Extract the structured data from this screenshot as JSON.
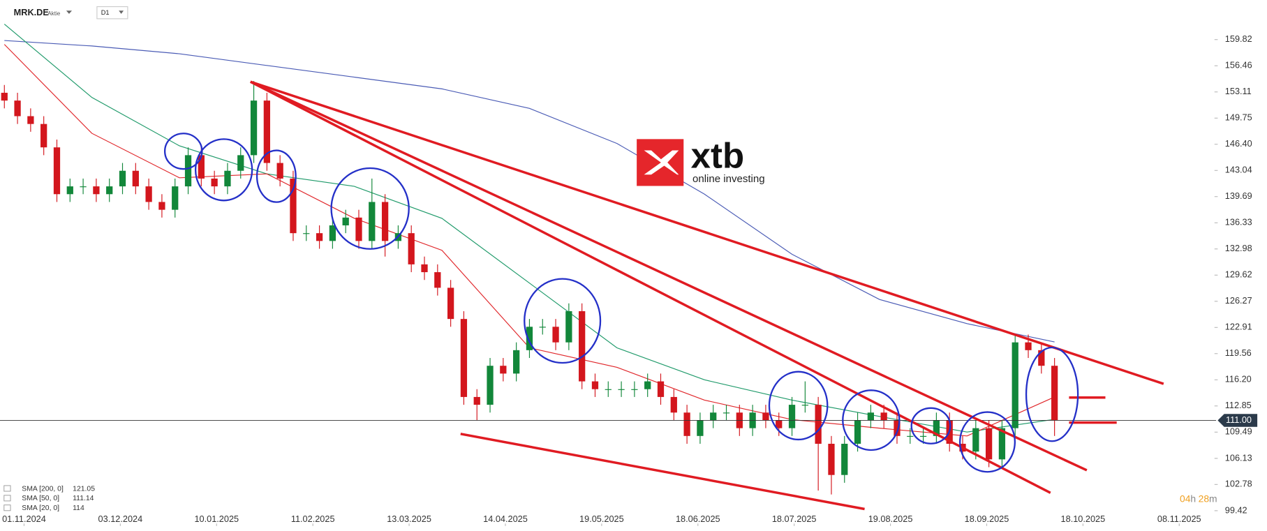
{
  "chart_data": {
    "type": "candlestick",
    "symbol": "MRK.DE",
    "instrument_type": "Aktie",
    "timeframe": "D1",
    "up_color": "#12873a",
    "down_color": "#d3161d",
    "x": [
      0,
      3,
      6,
      9,
      12,
      15,
      18,
      21,
      24,
      27,
      30,
      33,
      36,
      39,
      42,
      45,
      48,
      51,
      54,
      57,
      60,
      63,
      66,
      69,
      72,
      75,
      78,
      81,
      84,
      87,
      90,
      93,
      96,
      99,
      102,
      105,
      108,
      111,
      114,
      117,
      120,
      123,
      126,
      129,
      132,
      135,
      138,
      141,
      144,
      147,
      150,
      153,
      156,
      159,
      162,
      165,
      168,
      171,
      174,
      177,
      180,
      183,
      186,
      189,
      192,
      195,
      198,
      201,
      204,
      207,
      210,
      213,
      216,
      219,
      222,
      225,
      228,
      231,
      234,
      237,
      240
    ],
    "open": [
      153,
      152,
      150,
      149,
      146,
      140,
      141,
      141,
      140,
      141,
      143,
      141,
      139,
      138,
      141,
      145,
      142,
      141,
      143,
      145,
      152,
      144,
      142,
      135,
      135,
      134,
      136,
      137,
      134,
      139,
      134,
      135,
      131,
      130,
      128,
      124,
      114,
      113,
      118,
      117,
      120,
      123,
      123,
      121,
      125,
      116,
      115,
      115,
      115,
      115,
      116,
      114,
      112,
      109,
      111,
      112,
      112,
      110,
      112,
      111,
      110,
      113,
      113,
      108,
      104,
      108,
      111,
      112,
      111,
      109,
      109,
      109,
      111,
      108,
      107,
      110,
      106,
      110,
      121,
      120,
      118
    ],
    "high": [
      154,
      153,
      151,
      150,
      147,
      142,
      142,
      142,
      142,
      144,
      144,
      142,
      140,
      142,
      146,
      146,
      143,
      144,
      146,
      154.5,
      153,
      145,
      143,
      136,
      136,
      137,
      138,
      138,
      142,
      140,
      136,
      136,
      132,
      131,
      129,
      125,
      115,
      119,
      119,
      121,
      124,
      124,
      124,
      126,
      126,
      117,
      116,
      116,
      116,
      117,
      117,
      115,
      113,
      112,
      113,
      113,
      113,
      113,
      113,
      112,
      114,
      116,
      114,
      109,
      109,
      112,
      113,
      113,
      112,
      110,
      110,
      112,
      112,
      109,
      111,
      111,
      111,
      122,
      122,
      121,
      119
    ],
    "low": [
      151,
      149,
      148,
      145,
      139,
      139,
      140,
      139,
      139,
      140,
      140,
      138,
      137,
      137,
      140,
      141,
      140,
      140,
      142,
      144,
      143,
      141,
      134,
      134,
      133,
      133,
      135,
      133,
      133,
      132,
      133,
      130,
      129,
      127,
      123,
      113,
      111,
      112,
      116,
      116,
      119,
      122,
      120,
      120,
      115,
      114,
      114,
      114,
      114,
      114,
      113,
      111,
      108,
      108,
      110,
      111,
      109,
      109,
      110,
      109,
      109,
      112,
      102,
      101.5,
      103,
      107,
      110,
      110,
      108,
      108,
      108,
      108,
      107,
      106,
      106,
      105,
      105,
      109,
      119,
      117,
      109
    ],
    "close": [
      152,
      150,
      149,
      146,
      140,
      141,
      141,
      140,
      141,
      143,
      141,
      139,
      138,
      141,
      145,
      142,
      141,
      143,
      145,
      152,
      144,
      142,
      135,
      135,
      134,
      136,
      137,
      134,
      139,
      134,
      135,
      131,
      130,
      128,
      124,
      114,
      113,
      118,
      117,
      120,
      123,
      123,
      121,
      125,
      116,
      115,
      115,
      115,
      115,
      116,
      114,
      112,
      109,
      111,
      112,
      112,
      110,
      112,
      111,
      110,
      113,
      113,
      108,
      104,
      108,
      111,
      112,
      111,
      109,
      109,
      109,
      111,
      108,
      107,
      110,
      106,
      110,
      121,
      120,
      118,
      111
    ],
    "xlim": [
      -1,
      276
    ],
    "ylim": [
      98.6,
      162.8
    ],
    "xticks": [
      {
        "value": 4.5,
        "label": "01.11.2024"
      },
      {
        "value": 26.5,
        "label": "03.12.2024"
      },
      {
        "value": 48.5,
        "label": "10.01.2025"
      },
      {
        "value": 70.5,
        "label": "11.02.2025"
      },
      {
        "value": 92.5,
        "label": "13.03.2025"
      },
      {
        "value": 114.5,
        "label": "14.04.2025"
      },
      {
        "value": 136.5,
        "label": "19.05.2025"
      },
      {
        "value": 158.5,
        "label": "18.06.2025"
      },
      {
        "value": 180.5,
        "label": "18.07.2025"
      },
      {
        "value": 202.5,
        "label": "19.08.2025"
      },
      {
        "value": 224.5,
        "label": "18.09.2025"
      },
      {
        "value": 246.5,
        "label": "18.10.2025"
      },
      {
        "value": 268.5,
        "label": "08.11.2025"
      }
    ],
    "yticks": [
      159.82,
      156.46,
      153.11,
      149.75,
      {
        "value": 146.4,
        "label": "146.40"
      },
      143.04,
      139.69,
      136.33,
      132.98,
      129.62,
      126.27,
      122.91,
      119.56,
      {
        "value": 116.2,
        "label": "116.20"
      },
      112.85,
      109.49,
      106.13,
      102.78,
      99.42
    ],
    "lines": [
      {
        "name": "SMA [200, 0]",
        "last": 121.05,
        "color": "#4a5bb5",
        "x": [
          0,
          20,
          40,
          60,
          80,
          100,
          120,
          140,
          160,
          180,
          200,
          220,
          240
        ],
        "values": [
          159.7,
          159,
          158,
          156.5,
          155,
          153.5,
          151,
          146.5,
          140,
          132.3,
          126.5,
          123.4,
          121.05
        ]
      },
      {
        "name": "SMA [50, 0]",
        "last": 111.14,
        "color": "#1f9a6a",
        "x": [
          0,
          20,
          40,
          60,
          80,
          100,
          120,
          140,
          160,
          180,
          200,
          220,
          240
        ],
        "values": [
          161.8,
          152.4,
          146.2,
          142.6,
          141,
          136.9,
          128.6,
          120.3,
          116.2,
          113.6,
          111.5,
          109.5,
          111.14
        ]
      },
      {
        "name": "SMA [20, 0]",
        "last": 114.0,
        "color": "#e0262a",
        "x": [
          0,
          20,
          40,
          60,
          80,
          100,
          120,
          140,
          160,
          180,
          200,
          220,
          240
        ],
        "values": [
          159.2,
          147.8,
          142.1,
          142.6,
          136.9,
          132.8,
          120.3,
          117.8,
          113.6,
          111.1,
          110,
          109,
          114.0
        ]
      }
    ],
    "last_price": {
      "value": 111,
      "label": "111.00"
    },
    "countdown": {
      "hours": "04",
      "hours_unit": "h",
      "minutes": "28",
      "minutes_unit": "m"
    }
  },
  "logo": {
    "brand": "xtb",
    "tagline": "online investing"
  }
}
